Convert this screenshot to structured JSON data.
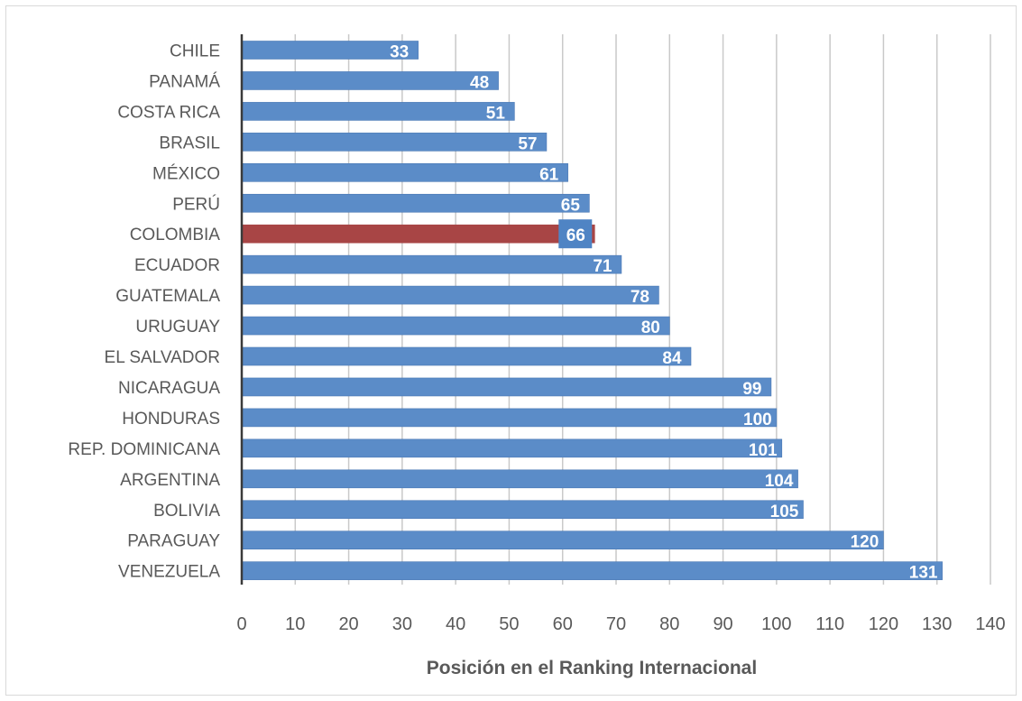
{
  "chart_data": {
    "type": "bar",
    "orientation": "horizontal",
    "categories": [
      "CHILE",
      "PANAMÁ",
      "COSTA RICA",
      "BRASIL",
      "MÉXICO",
      "PERÚ",
      "COLOMBIA",
      "ECUADOR",
      "GUATEMALA",
      "URUGUAY",
      "EL SALVADOR",
      "NICARAGUA",
      "HONDURAS",
      "REP. DOMINICANA",
      "ARGENTINA",
      "BOLIVIA",
      "PARAGUAY",
      "VENEZUELA"
    ],
    "values": [
      33,
      48,
      51,
      57,
      61,
      65,
      66,
      71,
      78,
      80,
      84,
      99,
      100,
      101,
      104,
      105,
      120,
      131
    ],
    "data_labels": [
      "33",
      "48",
      "51",
      "57",
      "61",
      "65",
      "66",
      "71",
      "78",
      "80",
      "84",
      "99",
      "100",
      "101",
      "104",
      "105",
      "120",
      "131"
    ],
    "highlight_category": "COLOMBIA",
    "title": "",
    "xlabel": "Posición en el Ranking Internacional",
    "ylabel": "",
    "xlim": [
      0,
      140
    ],
    "xticks": [
      "0",
      "10",
      "20",
      "30",
      "40",
      "50",
      "60",
      "70",
      "80",
      "90",
      "100",
      "110",
      "120",
      "130",
      "140"
    ],
    "grid": "vertical",
    "legend": "none",
    "colors": {
      "bar": "#5b8cc8",
      "bar_edge": "#4a78b4",
      "highlight": "#a84545",
      "highlight_label_box": "#4f84c4",
      "grid": "#c9c9c9",
      "axis": "#3a3a3a",
      "text": "#595959",
      "data_label": "#ffffff",
      "frame": "#d9d9d9"
    }
  }
}
